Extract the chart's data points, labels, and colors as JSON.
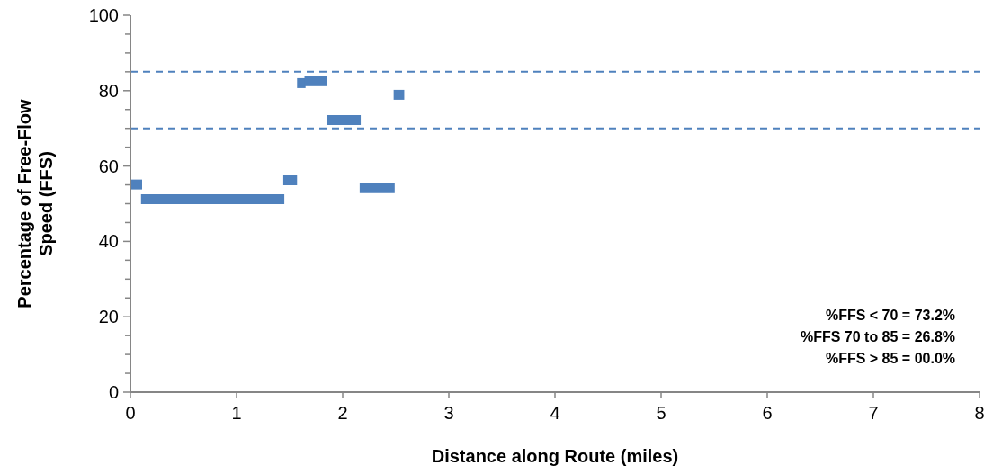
{
  "chart_data": {
    "type": "line",
    "xlabel": "Distance along Route (miles)",
    "ylabel": "Percentage of Free-Flow Speed (FFS)",
    "xlim": [
      0,
      8
    ],
    "xticks": [
      0,
      1,
      2,
      3,
      4,
      5,
      6,
      7,
      8
    ],
    "ylim": [
      0,
      100
    ],
    "yticks": [
      0,
      {
        "value": 5,
        "label": null
      },
      {
        "value": 10,
        "label": null
      },
      {
        "value": 15,
        "label": null
      },
      20,
      {
        "value": 25,
        "label": null
      },
      {
        "value": 30,
        "label": null
      },
      {
        "value": 35,
        "label": null
      },
      40,
      {
        "value": 45,
        "label": null
      },
      {
        "value": 50,
        "label": null
      },
      {
        "value": 55,
        "label": null
      },
      60,
      {
        "value": 65,
        "label": null
      },
      {
        "value": 70,
        "label": null
      },
      {
        "value": 75,
        "label": null
      },
      80,
      {
        "value": 85,
        "label": null
      },
      {
        "value": 90,
        "label": null
      },
      {
        "value": 95,
        "label": null
      },
      100
    ],
    "grid": false,
    "marker": "none",
    "line_style": "solid",
    "series": [
      {
        "color": "#4f81bd",
        "x": [
          0,
          0.11
        ],
        "values": [
          55.1,
          55.1
        ]
      },
      {
        "color": "#4f81bd",
        "x": [
          0.1,
          1.45
        ],
        "values": [
          51.2,
          51.2
        ]
      },
      {
        "color": "#4f81bd",
        "x": [
          1.44,
          1.57
        ],
        "values": [
          56.2,
          56.2
        ]
      },
      {
        "color": "#4f81bd",
        "x": [
          1.57,
          1.65
        ],
        "values": [
          82,
          82
        ]
      },
      {
        "color": "#4f81bd",
        "x": [
          1.64,
          1.85
        ],
        "values": [
          82.5,
          82.5
        ]
      },
      {
        "color": "#4f81bd",
        "x": [
          1.85,
          2.17
        ],
        "values": [
          72.2,
          72.2
        ]
      },
      {
        "color": "#4f81bd",
        "x": [
          2.16,
          2.49
        ],
        "values": [
          54.1,
          54.1
        ]
      },
      {
        "color": "#4f81bd",
        "x": [
          2.48,
          2.58
        ],
        "values": [
          78.9,
          78.9
        ]
      }
    ],
    "ref_lines": [
      {
        "axis": "y",
        "value": 85,
        "color": "#4f81bd",
        "line_style": "dashed"
      },
      {
        "axis": "y",
        "value": 70,
        "color": "#4f81bd",
        "line_style": "dashed"
      }
    ],
    "annotations": [
      "%FFS < 70 = 73.2%",
      "%FFS 70 to 85 = 26.8%",
      "%FFS > 85 = 00.0%"
    ]
  }
}
